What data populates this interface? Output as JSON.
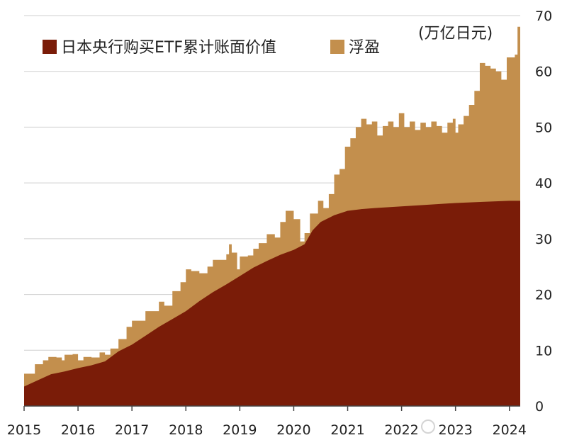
{
  "chart_data": {
    "type": "area",
    "unit": "(万亿日元)",
    "x_tick_labels": [
      "2015",
      "2016",
      "2017",
      "2018",
      "2019",
      "2020",
      "2021",
      "2022",
      "2023",
      "2024"
    ],
    "y_ticks": [
      0,
      10,
      20,
      30,
      40,
      50,
      60,
      70
    ],
    "ylim": [
      0,
      70
    ],
    "xlim": [
      2015.0,
      2024.2
    ],
    "grid": true,
    "legend_position": "top-left",
    "colors": {
      "book_value": "#7a1c08",
      "unrealized_gain": "#c38f4d",
      "grid": "#cfcfcf"
    },
    "series": [
      {
        "name": "日本央行购买ETF累计账面价值",
        "points": [
          [
            2015.0,
            3.5
          ],
          [
            2015.25,
            4.6
          ],
          [
            2015.5,
            5.7
          ],
          [
            2015.75,
            6.2
          ],
          [
            2016.0,
            6.8
          ],
          [
            2016.25,
            7.3
          ],
          [
            2016.5,
            8.0
          ],
          [
            2016.75,
            9.8
          ],
          [
            2017.0,
            11.0
          ],
          [
            2017.25,
            12.6
          ],
          [
            2017.5,
            14.2
          ],
          [
            2017.75,
            15.6
          ],
          [
            2018.0,
            17.0
          ],
          [
            2018.25,
            18.8
          ],
          [
            2018.5,
            20.4
          ],
          [
            2018.75,
            21.8
          ],
          [
            2019.0,
            23.3
          ],
          [
            2019.25,
            24.8
          ],
          [
            2019.5,
            26.0
          ],
          [
            2019.75,
            27.1
          ],
          [
            2020.0,
            28.0
          ],
          [
            2020.2,
            29.0
          ],
          [
            2020.35,
            31.5
          ],
          [
            2020.5,
            33.0
          ],
          [
            2020.75,
            34.2
          ],
          [
            2021.0,
            35.0
          ],
          [
            2021.25,
            35.3
          ],
          [
            2021.5,
            35.5
          ],
          [
            2022.0,
            35.8
          ],
          [
            2022.5,
            36.1
          ],
          [
            2023.0,
            36.4
          ],
          [
            2023.5,
            36.6
          ],
          [
            2024.0,
            36.8
          ],
          [
            2024.2,
            36.8
          ]
        ]
      },
      {
        "name": "浮盈",
        "points": [
          [
            2015.0,
            5.8
          ],
          [
            2015.2,
            7.5
          ],
          [
            2015.35,
            8.2
          ],
          [
            2015.45,
            8.8
          ],
          [
            2015.6,
            8.7
          ],
          [
            2015.7,
            8.2
          ],
          [
            2015.75,
            9.2
          ],
          [
            2015.9,
            9.3
          ],
          [
            2016.0,
            8.2
          ],
          [
            2016.1,
            8.8
          ],
          [
            2016.25,
            8.7
          ],
          [
            2016.4,
            9.6
          ],
          [
            2016.5,
            9.2
          ],
          [
            2016.6,
            10.3
          ],
          [
            2016.75,
            12.0
          ],
          [
            2016.9,
            14.2
          ],
          [
            2017.0,
            15.3
          ],
          [
            2017.25,
            17.0
          ],
          [
            2017.5,
            18.7
          ],
          [
            2017.6,
            18.0
          ],
          [
            2017.75,
            20.6
          ],
          [
            2017.9,
            22.2
          ],
          [
            2018.0,
            24.5
          ],
          [
            2018.1,
            24.2
          ],
          [
            2018.25,
            23.8
          ],
          [
            2018.4,
            25.0
          ],
          [
            2018.5,
            26.2
          ],
          [
            2018.75,
            27.2
          ],
          [
            2018.8,
            29.0
          ],
          [
            2018.85,
            27.5
          ],
          [
            2018.95,
            24.5
          ],
          [
            2019.0,
            26.8
          ],
          [
            2019.15,
            27.0
          ],
          [
            2019.25,
            28.2
          ],
          [
            2019.35,
            29.2
          ],
          [
            2019.5,
            30.8
          ],
          [
            2019.65,
            30.2
          ],
          [
            2019.75,
            33.0
          ],
          [
            2019.85,
            35.0
          ],
          [
            2020.0,
            33.5
          ],
          [
            2020.12,
            29.5
          ],
          [
            2020.2,
            31.0
          ],
          [
            2020.3,
            34.5
          ],
          [
            2020.45,
            36.8
          ],
          [
            2020.55,
            35.5
          ],
          [
            2020.65,
            38.0
          ],
          [
            2020.75,
            41.5
          ],
          [
            2020.85,
            42.5
          ],
          [
            2020.95,
            46.5
          ],
          [
            2021.05,
            48.0
          ],
          [
            2021.15,
            50.0
          ],
          [
            2021.25,
            51.5
          ],
          [
            2021.35,
            50.5
          ],
          [
            2021.45,
            51.0
          ],
          [
            2021.55,
            48.5
          ],
          [
            2021.65,
            50.2
          ],
          [
            2021.75,
            51.0
          ],
          [
            2021.85,
            50.0
          ],
          [
            2021.95,
            52.5
          ],
          [
            2022.05,
            50.0
          ],
          [
            2022.15,
            51.0
          ],
          [
            2022.25,
            49.5
          ],
          [
            2022.35,
            50.8
          ],
          [
            2022.45,
            50.0
          ],
          [
            2022.55,
            51.0
          ],
          [
            2022.65,
            50.2
          ],
          [
            2022.75,
            49.0
          ],
          [
            2022.85,
            50.8
          ],
          [
            2022.95,
            51.5
          ],
          [
            2023.0,
            49.0
          ],
          [
            2023.05,
            50.5
          ],
          [
            2023.15,
            52.0
          ],
          [
            2023.25,
            54.0
          ],
          [
            2023.35,
            56.5
          ],
          [
            2023.45,
            61.5
          ],
          [
            2023.55,
            61.0
          ],
          [
            2023.65,
            60.5
          ],
          [
            2023.75,
            60.0
          ],
          [
            2023.85,
            58.5
          ],
          [
            2023.95,
            62.5
          ],
          [
            2024.05,
            62.5
          ],
          [
            2024.1,
            63.0
          ],
          [
            2024.15,
            68.0
          ],
          [
            2024.2,
            69.5
          ]
        ]
      }
    ]
  }
}
